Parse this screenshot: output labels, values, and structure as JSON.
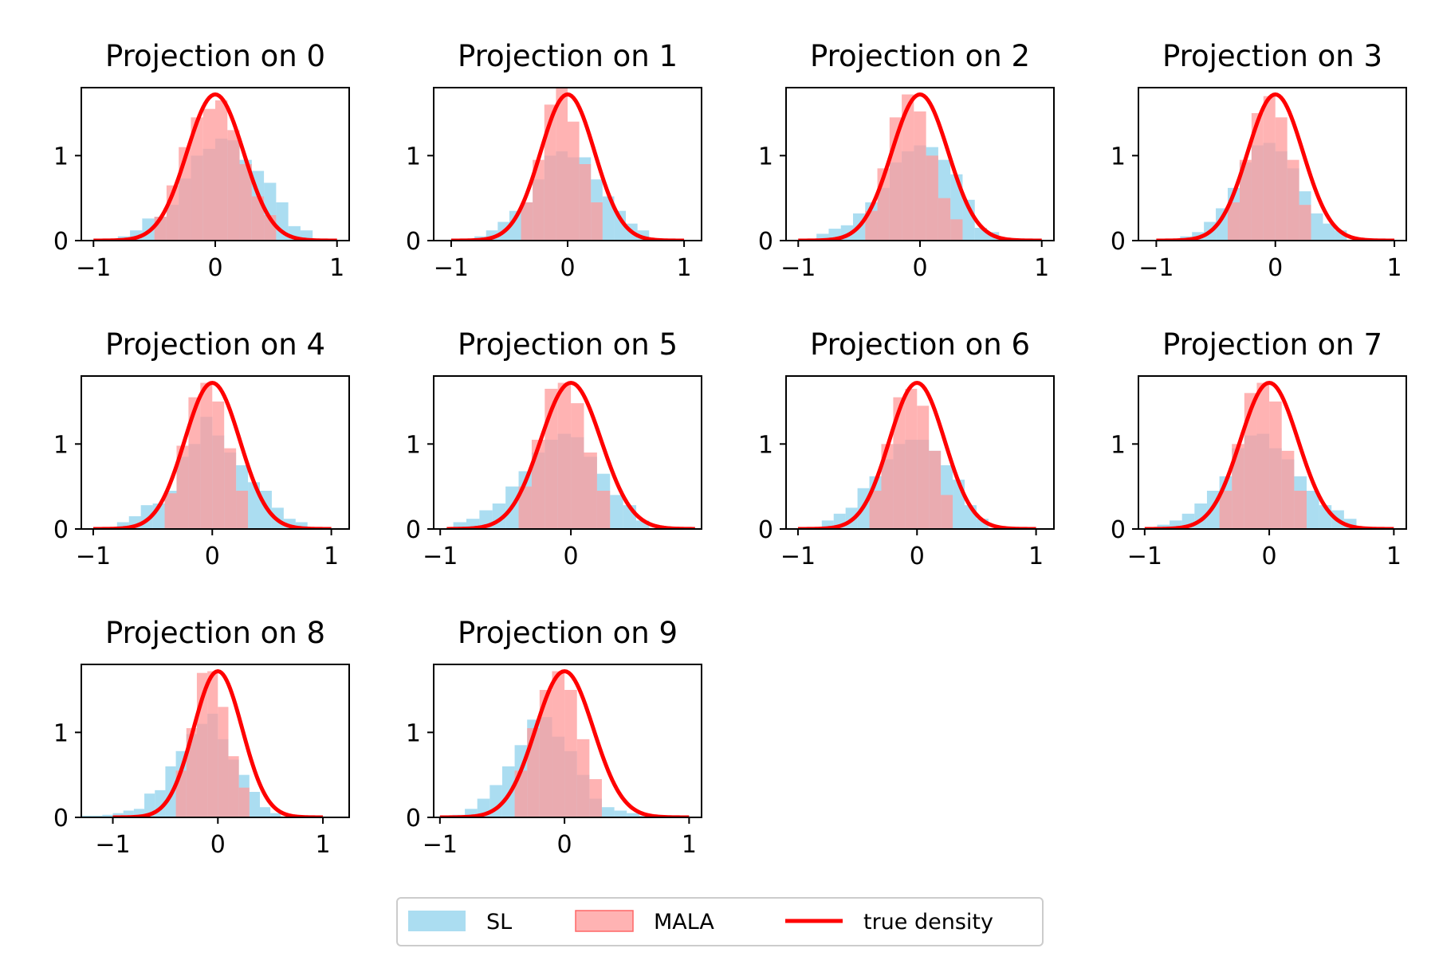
{
  "chart_data": {
    "type": "histogram-grid",
    "series": [
      {
        "name": "SL",
        "kind": "histogram",
        "color": "#87CEEB",
        "opacity": 0.7
      },
      {
        "name": "MALA",
        "kind": "histogram",
        "color": "#FF9999",
        "opacity": 0.75
      },
      {
        "name": "true density",
        "kind": "line",
        "color": "#FF0000"
      }
    ],
    "true_density": {
      "mean": 0.0,
      "peak": 1.72
    },
    "legend": {
      "placement": "bottom-center",
      "columns": 3
    },
    "panels": [
      {
        "title": "Projection on 0",
        "xlim": [
          -1.1,
          1.1
        ],
        "ylim": [
          0,
          1.8
        ],
        "xticks": [
          {
            "v": -1,
            "label": "−1"
          },
          {
            "v": 0,
            "label": "0"
          },
          {
            "v": 1,
            "label": "1"
          }
        ],
        "yticks": [
          {
            "v": 0,
            "label": "0"
          },
          {
            "v": 1,
            "label": "1"
          }
        ],
        "curve_range": [
          -1.0,
          1.0
        ],
        "sl": {
          "start": -0.8,
          "width": 0.1,
          "values": [
            0.05,
            0.12,
            0.26,
            0.28,
            0.42,
            0.73,
            1.0,
            1.08,
            1.2,
            1.18,
            0.95,
            0.82,
            0.68,
            0.45,
            0.17,
            0.12
          ]
        },
        "mala": {
          "start": -0.5,
          "width": 0.1,
          "values": [
            0.28,
            0.65,
            1.1,
            1.45,
            1.55,
            1.65,
            1.3,
            0.9,
            0.52,
            0.3
          ]
        }
      },
      {
        "title": "Projection on 1",
        "xlim": [
          -1.15,
          1.15
        ],
        "ylim": [
          0,
          1.8
        ],
        "xticks": [
          {
            "v": -1,
            "label": "−1"
          },
          {
            "v": 0,
            "label": "0"
          },
          {
            "v": 1,
            "label": "1"
          }
        ],
        "yticks": [
          {
            "v": 0,
            "label": "0"
          },
          {
            "v": 1,
            "label": "1"
          }
        ],
        "curve_range": [
          -1.0,
          1.0
        ],
        "sl": {
          "start": -0.8,
          "width": 0.1,
          "values": [
            0.05,
            0.12,
            0.22,
            0.35,
            0.45,
            0.72,
            1.0,
            1.05,
            0.98,
            0.98,
            0.72,
            0.52,
            0.35,
            0.2,
            0.12
          ]
        },
        "mala": {
          "start": -0.4,
          "width": 0.1,
          "values": [
            0.45,
            0.95,
            1.6,
            1.8,
            1.4,
            0.9,
            0.45
          ]
        }
      },
      {
        "title": "Projection on 2",
        "xlim": [
          -1.1,
          1.1
        ],
        "ylim": [
          0,
          1.8
        ],
        "xticks": [
          {
            "v": -1,
            "label": "−1"
          },
          {
            "v": 0,
            "label": "0"
          },
          {
            "v": 1,
            "label": "1"
          }
        ],
        "yticks": [
          {
            "v": 0,
            "label": "0"
          },
          {
            "v": 1,
            "label": "1"
          }
        ],
        "curve_range": [
          -1.0,
          1.0
        ],
        "sl": {
          "start": -0.85,
          "width": 0.1,
          "values": [
            0.08,
            0.14,
            0.18,
            0.32,
            0.45,
            0.62,
            0.92,
            1.05,
            1.12,
            1.1,
            0.95,
            0.78,
            0.48,
            0.15,
            0.1
          ]
        },
        "mala": {
          "start": -0.45,
          "width": 0.1,
          "values": [
            0.35,
            0.85,
            1.45,
            1.72,
            1.52,
            1.0,
            0.5,
            0.25
          ]
        }
      },
      {
        "title": "Projection on 3",
        "xlim": [
          -1.15,
          1.1
        ],
        "ylim": [
          0,
          1.8
        ],
        "xticks": [
          {
            "v": -1,
            "label": "−1"
          },
          {
            "v": 0,
            "label": "0"
          },
          {
            "v": 1,
            "label": "1"
          }
        ],
        "yticks": [
          {
            "v": 0,
            "label": "0"
          },
          {
            "v": 1,
            "label": "1"
          }
        ],
        "curve_range": [
          -1.0,
          1.0
        ],
        "sl": {
          "start": -0.8,
          "width": 0.1,
          "values": [
            0.05,
            0.1,
            0.22,
            0.38,
            0.62,
            0.92,
            1.12,
            1.15,
            1.05,
            0.85,
            0.58,
            0.32,
            0.2,
            0.12
          ]
        },
        "mala": {
          "start": -0.4,
          "width": 0.1,
          "values": [
            0.45,
            0.95,
            1.5,
            1.7,
            1.45,
            0.95,
            0.42
          ]
        }
      },
      {
        "title": "Projection on 4",
        "xlim": [
          -1.1,
          1.15
        ],
        "ylim": [
          0,
          1.8
        ],
        "xticks": [
          {
            "v": -1,
            "label": "−1"
          },
          {
            "v": 0,
            "label": "0"
          },
          {
            "v": 1,
            "label": "1"
          }
        ],
        "yticks": [
          {
            "v": 0,
            "label": "0"
          },
          {
            "v": 1,
            "label": "1"
          }
        ],
        "curve_range": [
          -1.0,
          1.0
        ],
        "sl": {
          "start": -0.8,
          "width": 0.1,
          "values": [
            0.08,
            0.15,
            0.28,
            0.3,
            0.45,
            0.85,
            1.0,
            1.32,
            1.1,
            0.9,
            0.75,
            0.55,
            0.45,
            0.25,
            0.12,
            0.08
          ]
        },
        "mala": {
          "start": -0.4,
          "width": 0.1,
          "values": [
            0.42,
            0.98,
            1.55,
            1.72,
            1.5,
            0.95,
            0.45
          ]
        }
      },
      {
        "title": "Projection on 5",
        "xlim": [
          -1.05,
          1.0
        ],
        "ylim": [
          0,
          1.8
        ],
        "xticks": [
          {
            "v": -1,
            "label": "−1"
          },
          {
            "v": 0,
            "label": "0"
          }
        ],
        "yticks": [
          {
            "v": 0,
            "label": "0"
          },
          {
            "v": 1,
            "label": "1"
          }
        ],
        "curve_range": [
          -0.95,
          0.95
        ],
        "sl": {
          "start": -0.9,
          "width": 0.1,
          "values": [
            0.08,
            0.12,
            0.22,
            0.3,
            0.5,
            0.68,
            0.9,
            1.05,
            1.12,
            1.08,
            0.85,
            0.65,
            0.4,
            0.28,
            0.1
          ]
        },
        "mala": {
          "start": -0.4,
          "width": 0.1,
          "values": [
            0.5,
            1.05,
            1.65,
            1.72,
            1.48,
            0.9,
            0.45
          ]
        }
      },
      {
        "title": "Projection on 6",
        "xlim": [
          -1.1,
          1.15
        ],
        "ylim": [
          0,
          1.8
        ],
        "xticks": [
          {
            "v": -1,
            "label": "−1"
          },
          {
            "v": 0,
            "label": "0"
          },
          {
            "v": 1,
            "label": "1"
          }
        ],
        "yticks": [
          {
            "v": 0,
            "label": "0"
          },
          {
            "v": 1,
            "label": "1"
          }
        ],
        "curve_range": [
          -1.0,
          1.0
        ],
        "sl": {
          "start": -0.8,
          "width": 0.1,
          "values": [
            0.1,
            0.18,
            0.25,
            0.48,
            0.62,
            0.82,
            1.0,
            1.05,
            1.05,
            0.92,
            0.75,
            0.58,
            0.28,
            0.12
          ]
        },
        "mala": {
          "start": -0.4,
          "width": 0.1,
          "values": [
            0.45,
            1.0,
            1.55,
            1.65,
            1.45,
            0.92,
            0.4
          ]
        }
      },
      {
        "title": "Projection on 7",
        "xlim": [
          -1.05,
          1.1
        ],
        "ylim": [
          0,
          1.8
        ],
        "xticks": [
          {
            "v": -1,
            "label": "−1"
          },
          {
            "v": 0,
            "label": "0"
          },
          {
            "v": 1,
            "label": "1"
          }
        ],
        "yticks": [
          {
            "v": 0,
            "label": "0"
          },
          {
            "v": 1,
            "label": "1"
          }
        ],
        "curve_range": [
          -1.0,
          1.0
        ],
        "sl": {
          "start": -0.9,
          "width": 0.1,
          "values": [
            0.05,
            0.1,
            0.18,
            0.3,
            0.45,
            0.62,
            0.95,
            1.1,
            1.12,
            0.95,
            0.82,
            0.62,
            0.45,
            0.28,
            0.22,
            0.12
          ]
        },
        "mala": {
          "start": -0.4,
          "width": 0.1,
          "values": [
            0.45,
            1.0,
            1.6,
            1.72,
            1.5,
            0.92,
            0.45
          ]
        }
      },
      {
        "title": "Projection on 8",
        "xlim": [
          -1.3,
          1.25
        ],
        "ylim": [
          0,
          1.8
        ],
        "xticks": [
          {
            "v": -1,
            "label": "−1"
          },
          {
            "v": 0,
            "label": "0"
          },
          {
            "v": 1,
            "label": "1"
          }
        ],
        "yticks": [
          {
            "v": 0,
            "label": "0"
          },
          {
            "v": 1,
            "label": "1"
          }
        ],
        "curve_range": [
          -1.0,
          1.0
        ],
        "sl": {
          "start": -1.3,
          "width": 0.1,
          "values": [
            0.02,
            0.02,
            0.03,
            0.05,
            0.08,
            0.1,
            0.28,
            0.32,
            0.6,
            0.78,
            0.98,
            1.1,
            1.22,
            0.92,
            0.68,
            0.5,
            0.3,
            0.12,
            0.05
          ]
        },
        "mala": {
          "start": -0.4,
          "width": 0.1,
          "values": [
            0.55,
            1.05,
            1.7,
            1.72,
            1.3,
            0.72,
            0.35
          ]
        }
      },
      {
        "title": "Projection on 9",
        "xlim": [
          -1.05,
          1.1
        ],
        "ylim": [
          0,
          1.8
        ],
        "xticks": [
          {
            "v": -1,
            "label": "−1"
          },
          {
            "v": 0,
            "label": "0"
          },
          {
            "v": 1,
            "label": "1"
          }
        ],
        "yticks": [
          {
            "v": 0,
            "label": "0"
          },
          {
            "v": 1,
            "label": "1"
          }
        ],
        "curve_range": [
          -1.0,
          1.0
        ],
        "sl": {
          "start": -1.0,
          "width": 0.1,
          "values": [
            0.02,
            0.03,
            0.1,
            0.22,
            0.38,
            0.6,
            0.85,
            1.15,
            1.18,
            0.95,
            0.78,
            0.5,
            0.22,
            0.12,
            0.08,
            0.05,
            0.02
          ]
        },
        "mala": {
          "start": -0.4,
          "width": 0.1,
          "values": [
            0.55,
            1.05,
            1.5,
            1.72,
            1.5,
            0.92,
            0.45
          ]
        }
      }
    ]
  }
}
